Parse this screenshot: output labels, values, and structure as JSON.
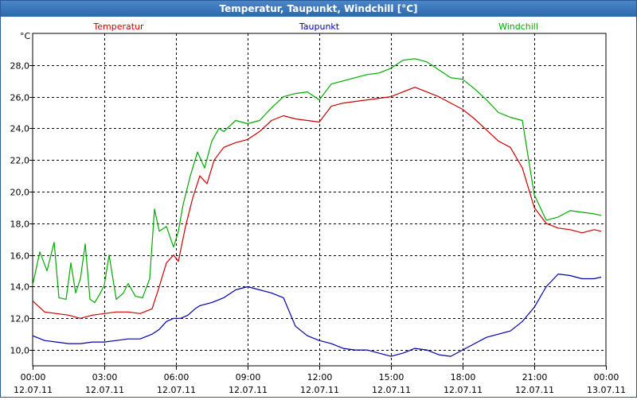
{
  "window": {
    "title": "Temperatur, Taupunkt, Windchill [°C]"
  },
  "chart_data": {
    "type": "line",
    "title": "Temperatur, Taupunkt, Windchill [°C]",
    "ylabel": "°C",
    "xlabel": "",
    "grid": true,
    "ylim": [
      9.0,
      30.0
    ],
    "xlim": [
      0,
      24
    ],
    "y_ticks": [
      "10,0",
      "12,0",
      "14,0",
      "16,0",
      "18,0",
      "20,0",
      "22,0",
      "24,0",
      "26,0",
      "28,0"
    ],
    "y_tick_values": [
      10,
      12,
      14,
      16,
      18,
      20,
      22,
      24,
      26,
      28
    ],
    "x_ticks": [
      {
        "time": "00:00",
        "date": "12.07.11"
      },
      {
        "time": "03:00",
        "date": "12.07.11"
      },
      {
        "time": "06:00",
        "date": "12.07.11"
      },
      {
        "time": "09:00",
        "date": "12.07.11"
      },
      {
        "time": "12:00",
        "date": "12.07.11"
      },
      {
        "time": "15:00",
        "date": "12.07.11"
      },
      {
        "time": "18:00",
        "date": "12.07.11"
      },
      {
        "time": "21:00",
        "date": "12.07.11"
      },
      {
        "time": "00:00",
        "date": "13.07.11"
      }
    ],
    "x_tick_values": [
      0,
      3,
      6,
      9,
      12,
      15,
      18,
      21,
      24
    ],
    "series": [
      {
        "name": "Temperatur",
        "color": "#cc0000",
        "x": [
          0,
          0.5,
          1,
          1.5,
          2,
          2.5,
          3,
          3.5,
          4,
          4.5,
          5,
          5.3,
          5.6,
          5.9,
          6.1,
          6.4,
          6.7,
          7,
          7.3,
          7.6,
          8,
          8.5,
          9,
          9.5,
          10,
          10.5,
          11,
          11.5,
          12,
          12.5,
          13,
          13.5,
          14,
          14.5,
          15,
          15.5,
          16,
          16.5,
          17,
          17.5,
          18,
          18.5,
          19,
          19.5,
          20,
          20.5,
          21,
          21.5,
          22,
          22.5,
          23,
          23.5,
          23.8
        ],
        "values": [
          13.1,
          12.4,
          12.3,
          12.2,
          12.0,
          12.2,
          12.3,
          12.4,
          12.4,
          12.3,
          12.6,
          14.0,
          15.5,
          16.0,
          15.6,
          17.8,
          19.6,
          21.0,
          20.5,
          22.0,
          22.8,
          23.1,
          23.3,
          23.8,
          24.5,
          24.8,
          24.6,
          24.5,
          24.4,
          25.4,
          25.6,
          25.7,
          25.8,
          25.9,
          26.0,
          26.3,
          26.6,
          26.3,
          26.0,
          25.6,
          25.2,
          24.6,
          23.9,
          23.2,
          22.8,
          21.5,
          19.0,
          18.0,
          17.7,
          17.6,
          17.4,
          17.6,
          17.5
        ]
      },
      {
        "name": "Taupunkt",
        "color": "#0000aa",
        "x": [
          0,
          0.5,
          1,
          1.5,
          2,
          2.5,
          3,
          3.5,
          4,
          4.5,
          5,
          5.3,
          5.6,
          5.9,
          6.2,
          6.5,
          6.8,
          7,
          7.5,
          8,
          8.5,
          9,
          9.5,
          10,
          10.5,
          11,
          11.5,
          12,
          12.5,
          13,
          13.5,
          14,
          14.5,
          15,
          15.5,
          16,
          16.5,
          17,
          17.5,
          18,
          18.5,
          19,
          19.5,
          20,
          20.5,
          21,
          21.5,
          22,
          22.5,
          23,
          23.5,
          23.8
        ],
        "values": [
          10.9,
          10.6,
          10.5,
          10.4,
          10.4,
          10.5,
          10.5,
          10.6,
          10.7,
          10.7,
          11.0,
          11.3,
          11.8,
          12.0,
          12.0,
          12.2,
          12.6,
          12.8,
          13.0,
          13.3,
          13.8,
          14.0,
          13.8,
          13.6,
          13.3,
          11.5,
          10.9,
          10.6,
          10.4,
          10.1,
          10.0,
          10.0,
          9.8,
          9.6,
          9.8,
          10.1,
          10.0,
          9.7,
          9.6,
          10.0,
          10.4,
          10.8,
          11.0,
          11.2,
          11.8,
          12.7,
          14.0,
          14.8,
          14.7,
          14.5,
          14.5,
          14.6
        ]
      },
      {
        "name": "Windchill",
        "color": "#00aa00",
        "x": [
          0,
          0.3,
          0.6,
          0.9,
          1.1,
          1.4,
          1.6,
          1.8,
          2.0,
          2.2,
          2.4,
          2.6,
          2.8,
          3.0,
          3.2,
          3.5,
          3.8,
          4.0,
          4.3,
          4.6,
          4.9,
          5.1,
          5.3,
          5.6,
          5.9,
          6.1,
          6.3,
          6.6,
          6.9,
          7.2,
          7.5,
          7.8,
          8.0,
          8.5,
          9.0,
          9.5,
          10,
          10.5,
          11,
          11.5,
          12,
          12.5,
          13,
          13.5,
          14,
          14.5,
          15,
          15.5,
          16,
          16.5,
          17,
          17.5,
          18,
          18.5,
          19,
          19.5,
          20,
          20.5,
          21,
          21.5,
          22,
          22.5,
          23,
          23.5,
          23.8
        ],
        "values": [
          14.1,
          16.2,
          15.0,
          16.8,
          13.3,
          13.2,
          15.5,
          13.6,
          14.5,
          16.7,
          13.2,
          13.0,
          13.5,
          14.1,
          16.0,
          13.2,
          13.6,
          14.2,
          13.4,
          13.3,
          14.5,
          18.9,
          17.5,
          17.8,
          16.5,
          17.5,
          19.2,
          21.0,
          22.5,
          21.5,
          23.2,
          24.0,
          23.8,
          24.5,
          24.3,
          24.5,
          25.3,
          26.0,
          26.2,
          26.3,
          25.8,
          26.8,
          27.0,
          27.2,
          27.4,
          27.5,
          27.8,
          28.3,
          28.4,
          28.2,
          27.7,
          27.2,
          27.1,
          26.5,
          25.8,
          25.0,
          24.7,
          24.5,
          19.8,
          18.2,
          18.4,
          18.8,
          18.7,
          18.6,
          18.5
        ]
      }
    ]
  }
}
